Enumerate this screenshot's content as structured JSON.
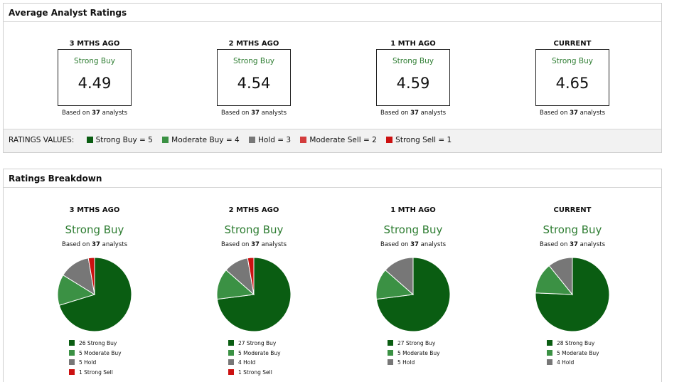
{
  "colors": {
    "strong_buy": "#0a5d12",
    "moderate_buy": "#3b9144",
    "hold": "#777777",
    "moderate_sell": "#d33c3c",
    "strong_sell": "#cc1111",
    "accent_text": "#2e7d32"
  },
  "average_panel": {
    "title": "Average Analyst Ratings",
    "columns": [
      {
        "period": "3 MTHS AGO",
        "rating": "Strong Buy",
        "score": "4.49",
        "based_prefix": "Based on",
        "analysts": "37",
        "based_suffix": "analysts"
      },
      {
        "period": "2 MTHS AGO",
        "rating": "Strong Buy",
        "score": "4.54",
        "based_prefix": "Based on",
        "analysts": "37",
        "based_suffix": "analysts"
      },
      {
        "period": "1 MTH AGO",
        "rating": "Strong Buy",
        "score": "4.59",
        "based_prefix": "Based on",
        "analysts": "37",
        "based_suffix": "analysts"
      },
      {
        "period": "CURRENT",
        "rating": "Strong Buy",
        "score": "4.65",
        "based_prefix": "Based on",
        "analysts": "37",
        "based_suffix": "analysts"
      }
    ],
    "ratings_values": {
      "label": "RATINGS VALUES:",
      "items": [
        {
          "label": "Strong Buy = 5"
        },
        {
          "label": "Moderate Buy = 4"
        },
        {
          "label": "Hold = 3"
        },
        {
          "label": "Moderate Sell = 2"
        },
        {
          "label": "Strong Sell = 1"
        }
      ]
    }
  },
  "breakdown_panel": {
    "title": "Ratings Breakdown",
    "columns": [
      {
        "period": "3 MTHS AGO",
        "rating": "Strong Buy",
        "based_prefix": "Based on",
        "analysts": "37",
        "based_suffix": "analysts",
        "legend": [
          "26 Strong Buy",
          "5 Moderate Buy",
          "5 Hold",
          "1 Strong Sell"
        ]
      },
      {
        "period": "2 MTHS AGO",
        "rating": "Strong Buy",
        "based_prefix": "Based on",
        "analysts": "37",
        "based_suffix": "analysts",
        "legend": [
          "27 Strong Buy",
          "5 Moderate Buy",
          "4 Hold",
          "1 Strong Sell"
        ]
      },
      {
        "period": "1 MTH AGO",
        "rating": "Strong Buy",
        "based_prefix": "Based on",
        "analysts": "37",
        "based_suffix": "analysts",
        "legend": [
          "27 Strong Buy",
          "5 Moderate Buy",
          "5 Hold"
        ]
      },
      {
        "period": "CURRENT",
        "rating": "Strong Buy",
        "based_prefix": "Based on",
        "analysts": "37",
        "based_suffix": "analysts",
        "legend": [
          "28 Strong Buy",
          "5 Moderate Buy",
          "4 Hold"
        ]
      }
    ]
  },
  "chart_data": [
    {
      "type": "pie",
      "categories": [
        "Strong Buy",
        "Moderate Buy",
        "Hold",
        "Strong Sell"
      ],
      "values": [
        26,
        5,
        5,
        1
      ]
    },
    {
      "type": "pie",
      "categories": [
        "Strong Buy",
        "Moderate Buy",
        "Hold",
        "Strong Sell"
      ],
      "values": [
        27,
        5,
        4,
        1
      ]
    },
    {
      "type": "pie",
      "categories": [
        "Strong Buy",
        "Moderate Buy",
        "Hold"
      ],
      "values": [
        27,
        5,
        5
      ]
    },
    {
      "type": "pie",
      "categories": [
        "Strong Buy",
        "Moderate Buy",
        "Hold"
      ],
      "values": [
        28,
        5,
        4
      ]
    }
  ]
}
